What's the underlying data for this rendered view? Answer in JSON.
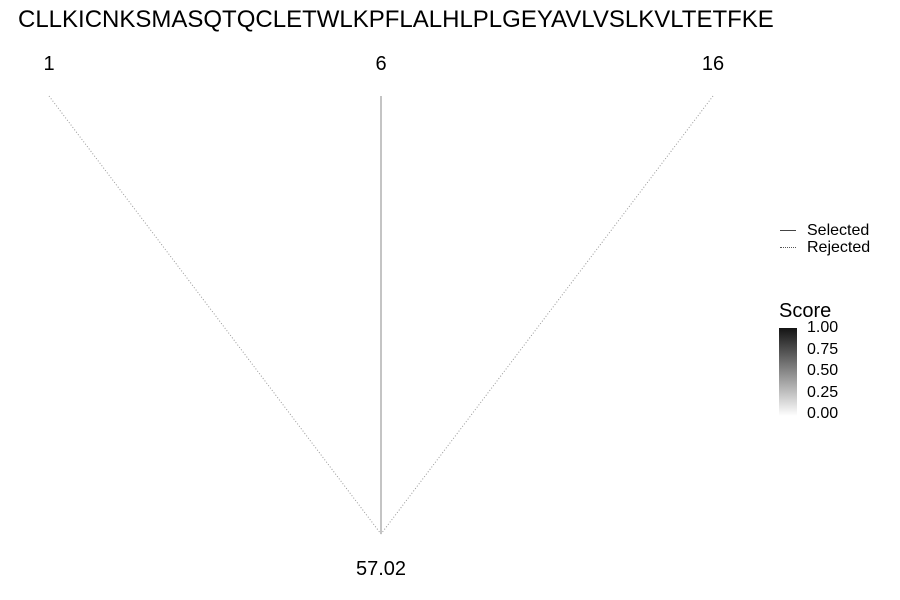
{
  "sequence": "CLLKICNKSMASQTQCLETWLKPFLALHLPLGEYAVLVSLKVLTETFKE",
  "positions": [
    {
      "label": "1",
      "status": "Rejected"
    },
    {
      "label": "6",
      "status": "Selected"
    },
    {
      "label": "16",
      "status": "Rejected"
    }
  ],
  "mass_label": "57.02",
  "legend": {
    "selected": "Selected",
    "rejected": "Rejected"
  },
  "score_legend": {
    "title": "Score",
    "ticks": [
      "1.00",
      "0.75",
      "0.50",
      "0.25",
      "0.00"
    ]
  },
  "colors": {
    "selected_line": "#888888",
    "rejected_line": "#9a9a9a",
    "gradient_high": "#141414",
    "gradient_low": "#ffffff"
  }
}
